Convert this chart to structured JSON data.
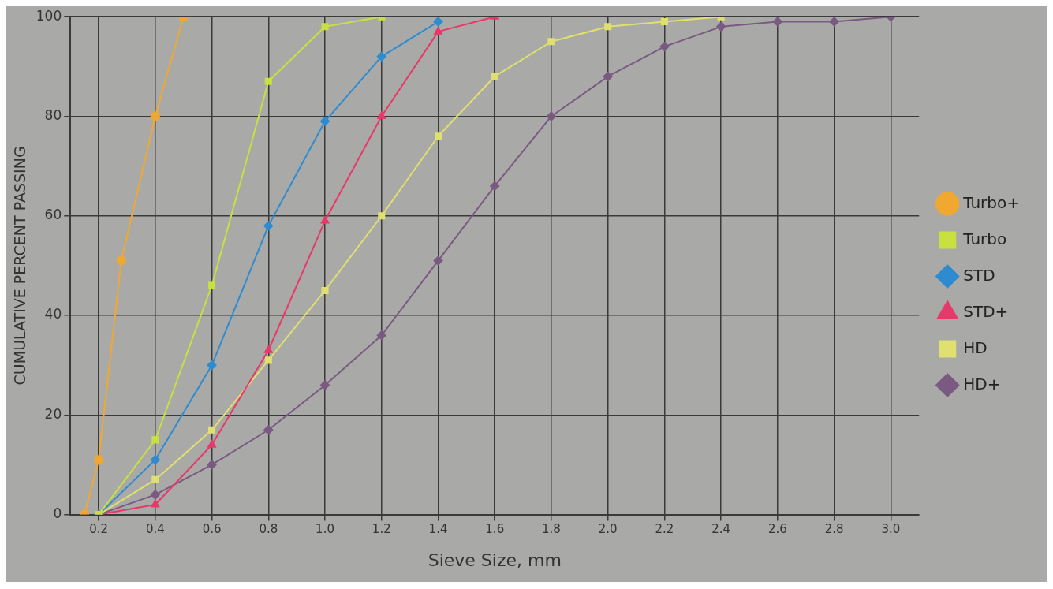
{
  "chart_data": {
    "type": "line",
    "xlabel": "Sieve Size, mm",
    "ylabel": "CUMULATIVE PERCENT PASSING",
    "xlim": [
      0.1,
      3.1
    ],
    "ylim": [
      0,
      100
    ],
    "xticks": [
      0.2,
      0.4,
      0.6,
      0.8,
      {
        "value": 1,
        "label": "1.0"
      },
      1.2,
      1.4,
      1.6,
      1.8,
      {
        "value": 2,
        "label": "2.0"
      },
      2.2,
      2.4,
      2.6,
      2.8,
      {
        "value": 3,
        "label": "3.0"
      }
    ],
    "yticks": [
      0,
      20,
      40,
      60,
      80,
      100
    ],
    "grid": true,
    "legend": "right",
    "series": [
      {
        "name": "Turbo+",
        "color": "#f0a830",
        "marker": "circle",
        "x": [
          0.15,
          0.2,
          0.28,
          0.4,
          0.5
        ],
        "values": [
          0,
          11,
          51,
          80,
          100
        ]
      },
      {
        "name": "Turbo",
        "color": "#c8e040",
        "marker": "square",
        "x": [
          0.2,
          0.4,
          0.6,
          0.8,
          1.0,
          1.2
        ],
        "values": [
          0,
          15,
          46,
          87,
          98,
          100
        ]
      },
      {
        "name": "STD",
        "color": "#2e8bd0",
        "marker": "diamond",
        "x": [
          0.2,
          0.4,
          0.6,
          0.8,
          1.0,
          1.2,
          1.4
        ],
        "values": [
          0,
          11,
          30,
          58,
          79,
          92,
          99
        ]
      },
      {
        "name": "STD+",
        "color": "#e8386a",
        "marker": "triangle",
        "x": [
          0.2,
          0.4,
          0.6,
          0.8,
          1.0,
          1.2,
          1.4,
          1.6
        ],
        "values": [
          0,
          2,
          14,
          33,
          59,
          80,
          97,
          100
        ]
      },
      {
        "name": "HD",
        "color": "#e0e070",
        "marker": "square",
        "x": [
          0.2,
          0.4,
          0.6,
          0.8,
          1.0,
          1.2,
          1.4,
          1.6,
          1.8,
          2.0,
          2.2,
          2.4
        ],
        "values": [
          0,
          7,
          17,
          31,
          45,
          60,
          76,
          88,
          95,
          98,
          99,
          100
        ]
      },
      {
        "name": "HD+",
        "color": "#7a5a80",
        "marker": "diamond",
        "x": [
          0.2,
          0.4,
          0.6,
          0.8,
          1.0,
          1.2,
          1.4,
          1.6,
          1.8,
          2.0,
          2.2,
          2.4,
          2.6,
          2.8,
          3.0
        ],
        "values": [
          0,
          4,
          10,
          17,
          26,
          36,
          51,
          66,
          80,
          88,
          94,
          98,
          99,
          99,
          100
        ]
      }
    ]
  }
}
